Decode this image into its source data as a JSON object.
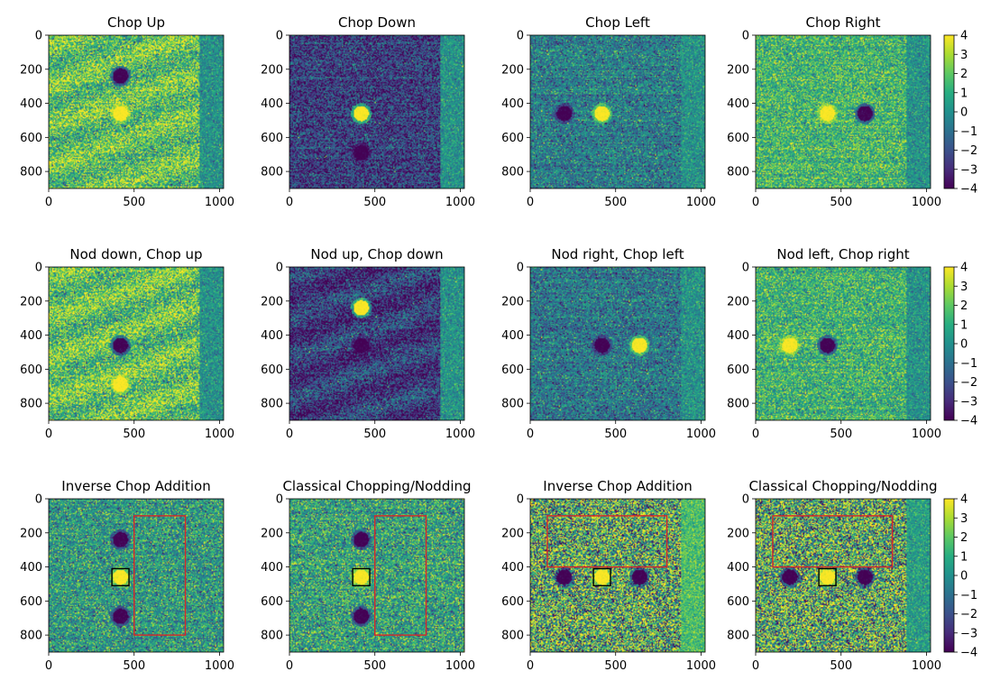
{
  "chart_data": {
    "type": "heatmap",
    "colormap": "viridis",
    "axis": {
      "xlim": [
        0,
        1024
      ],
      "ylim": [
        900,
        0
      ],
      "xticks": [
        0,
        500,
        1000
      ],
      "yticks": [
        0,
        200,
        400,
        600,
        800
      ]
    },
    "colorbar": {
      "range": [
        -4,
        4
      ],
      "ticks": [
        "4",
        "3",
        "2",
        "1",
        "0",
        "−1",
        "−2",
        "−3",
        "−4"
      ]
    },
    "panels": [
      {
        "title": "Chop Up",
        "bg": 1.8,
        "band": 0.1,
        "bandStart": 880,
        "noise": 1.6,
        "stripes": true,
        "spots": [
          {
            "x": 420,
            "y": 240,
            "v": -4
          },
          {
            "x": 420,
            "y": 460,
            "v": 4
          }
        ],
        "boxes": []
      },
      {
        "title": "Chop Down",
        "bg": -2.5,
        "band": 0.1,
        "bandStart": 880,
        "noise": 1.4,
        "stripes": false,
        "spots": [
          {
            "x": 420,
            "y": 460,
            "v": 4
          },
          {
            "x": 420,
            "y": 690,
            "v": -4
          }
        ],
        "boxes": []
      },
      {
        "title": "Chop Left",
        "bg": -0.6,
        "band": 0.1,
        "bandStart": 880,
        "noise": 1.3,
        "stripes": false,
        "spots": [
          {
            "x": 200,
            "y": 460,
            "v": -4
          },
          {
            "x": 420,
            "y": 460,
            "v": 4
          }
        ],
        "boxes": []
      },
      {
        "title": "Chop Right",
        "bg": 1.3,
        "band": 0.1,
        "bandStart": 880,
        "noise": 1.3,
        "stripes": false,
        "spots": [
          {
            "x": 420,
            "y": 460,
            "v": 4
          },
          {
            "x": 640,
            "y": 460,
            "v": -4
          }
        ],
        "boxes": []
      },
      {
        "title": "Nod down, Chop up",
        "bg": 1.8,
        "band": 0.1,
        "bandStart": 880,
        "noise": 1.6,
        "stripes": true,
        "spots": [
          {
            "x": 420,
            "y": 460,
            "v": -4
          },
          {
            "x": 420,
            "y": 690,
            "v": 4
          }
        ],
        "boxes": []
      },
      {
        "title": "Nod up, Chop down",
        "bg": -2.6,
        "band": 0.1,
        "bandStart": 880,
        "noise": 1.4,
        "stripes": true,
        "spots": [
          {
            "x": 420,
            "y": 240,
            "v": 4
          },
          {
            "x": 420,
            "y": 460,
            "v": -4
          }
        ],
        "boxes": []
      },
      {
        "title": "Nod right, Chop left",
        "bg": -0.8,
        "band": 0.1,
        "bandStart": 880,
        "noise": 1.3,
        "stripes": false,
        "spots": [
          {
            "x": 420,
            "y": 460,
            "v": -4
          },
          {
            "x": 640,
            "y": 460,
            "v": 4
          }
        ],
        "boxes": []
      },
      {
        "title": "Nod left, Chop right",
        "bg": 1.2,
        "band": 0.1,
        "bandStart": 880,
        "noise": 1.3,
        "stripes": false,
        "spots": [
          {
            "x": 200,
            "y": 460,
            "v": 4
          },
          {
            "x": 420,
            "y": 460,
            "v": -4
          }
        ],
        "boxes": []
      },
      {
        "title": "Inverse Chop Addition",
        "bg": 0.3,
        "band": 0.2,
        "bandStart": 2000,
        "noise": 1.5,
        "stripes": false,
        "spots": [
          {
            "x": 420,
            "y": 240,
            "v": -4
          },
          {
            "x": 420,
            "y": 460,
            "v": 4
          },
          {
            "x": 420,
            "y": 690,
            "v": -4
          }
        ],
        "boxes": [
          {
            "x0": 370,
            "y0": 410,
            "x1": 470,
            "y1": 510,
            "color": "#000000"
          },
          {
            "x0": 500,
            "y0": 100,
            "x1": 800,
            "y1": 800,
            "color": "#d62728"
          }
        ]
      },
      {
        "title": "Classical Chopping/Nodding",
        "bg": 0.6,
        "band": 0.3,
        "bandStart": 2000,
        "noise": 1.6,
        "stripes": false,
        "spots": [
          {
            "x": 420,
            "y": 240,
            "v": -4
          },
          {
            "x": 420,
            "y": 460,
            "v": 4
          },
          {
            "x": 420,
            "y": 690,
            "v": -4
          }
        ],
        "boxes": [
          {
            "x0": 370,
            "y0": 410,
            "x1": 470,
            "y1": 510,
            "color": "#000000"
          },
          {
            "x0": 500,
            "y0": 100,
            "x1": 800,
            "y1": 800,
            "color": "#d62728"
          }
        ]
      },
      {
        "title": "Inverse Chop Addition",
        "bg": 0.8,
        "band": 1.6,
        "bandStart": 880,
        "noise": 3.0,
        "stripes": false,
        "spots": [
          {
            "x": 200,
            "y": 460,
            "v": -4
          },
          {
            "x": 420,
            "y": 460,
            "v": 4
          },
          {
            "x": 640,
            "y": 460,
            "v": -4
          }
        ],
        "boxes": [
          {
            "x0": 370,
            "y0": 410,
            "x1": 470,
            "y1": 510,
            "color": "#000000"
          },
          {
            "x0": 100,
            "y0": 100,
            "x1": 800,
            "y1": 400,
            "color": "#d62728"
          }
        ]
      },
      {
        "title": "Classical Chopping/Nodding",
        "bg": 0.9,
        "band": 0.5,
        "bandStart": 880,
        "noise": 3.0,
        "stripes": false,
        "spots": [
          {
            "x": 200,
            "y": 460,
            "v": -4
          },
          {
            "x": 420,
            "y": 460,
            "v": 4
          },
          {
            "x": 640,
            "y": 460,
            "v": -4
          }
        ],
        "boxes": [
          {
            "x0": 370,
            "y0": 410,
            "x1": 470,
            "y1": 510,
            "color": "#000000"
          },
          {
            "x0": 100,
            "y0": 100,
            "x1": 800,
            "y1": 400,
            "color": "#d62728"
          }
        ]
      }
    ]
  }
}
